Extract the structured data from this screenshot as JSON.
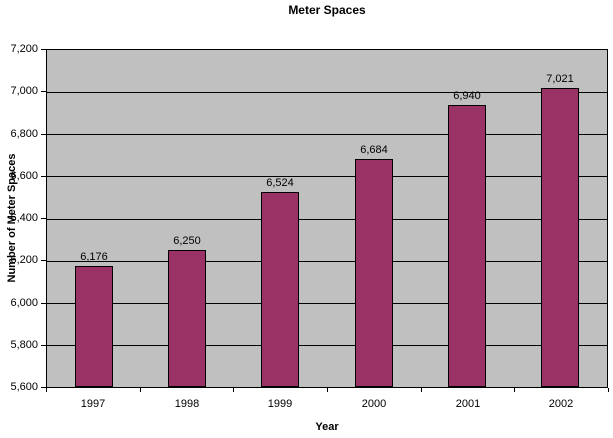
{
  "colors": {
    "bar_fill": "#993366",
    "bar_border": "#000000",
    "plot_background": "#C0C0C0",
    "gridline": "#000000",
    "text": "#000000",
    "page_background": "#FFFFFF"
  },
  "chart_data": {
    "type": "bar",
    "title": "Meter Spaces",
    "xlabel": "Year",
    "ylabel": "Number of Meter Spaces",
    "categories": [
      "1997",
      "1998",
      "1999",
      "2000",
      "2001",
      "2002"
    ],
    "values": [
      6176,
      6250,
      6524,
      6684,
      6940,
      7021
    ],
    "data_labels": [
      "6,176",
      "6,250",
      "6,524",
      "6,684",
      "6,940",
      "7,021"
    ],
    "ylim": [
      5600,
      7200
    ],
    "ytick_step": 200,
    "ytick_labels": [
      "5,600",
      "5,800",
      "6,000",
      "6,200",
      "6,400",
      "6,600",
      "6,800",
      "7,000",
      "7,200"
    ],
    "grid": true,
    "legend_position": "none",
    "series_name": "Meter Spaces"
  }
}
